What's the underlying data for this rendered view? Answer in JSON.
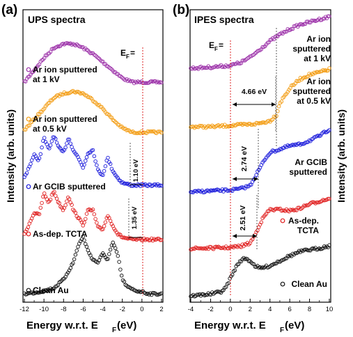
{
  "chart_data": [
    {
      "type": "scatter",
      "panel_label": "(a)",
      "title": "UPS spectra",
      "xlabel_main": "Energy w.r.t. E",
      "xlabel_sub": "F",
      "xlabel_unit": " (eV)",
      "ylabel": "Intensity (arb. units)",
      "xlim": [
        -12,
        2
      ],
      "xticks": [
        -12,
        -10,
        -8,
        -6,
        -4,
        -2,
        0,
        2
      ],
      "ef_label": "E",
      "ef_sub": "F",
      "ef_suffix": " =",
      "series": [
        {
          "name": "Ar ion sputtered at 1 kV",
          "label_lines": [
            "Ar ion sputtered",
            "at 1 kV"
          ],
          "color": "#9b2fa8",
          "x": [
            -12,
            -11,
            -10,
            -9,
            -8,
            -7,
            -6,
            -5,
            -4,
            -3,
            -2,
            -1,
            0,
            2
          ],
          "y": [
            0.0,
            0.3,
            0.6,
            0.85,
            0.95,
            0.95,
            0.85,
            0.7,
            0.5,
            0.3,
            0.1,
            0.0,
            0.0,
            0.0
          ]
        },
        {
          "name": "Ar ion sputtered at 0.5 kV",
          "label_lines": [
            "Ar ion sputtered",
            "at 0.5 kV"
          ],
          "color": "#f39c12",
          "x": [
            -12,
            -11,
            -10,
            -9,
            -8,
            -7,
            -6,
            -5,
            -4,
            -3,
            -2,
            -1,
            0,
            2
          ],
          "y": [
            0.05,
            0.3,
            0.55,
            0.8,
            0.9,
            0.95,
            0.9,
            0.75,
            0.55,
            0.3,
            0.1,
            0.0,
            0.0,
            0.0
          ]
        },
        {
          "name": "Ar GCIB sputtered",
          "label_lines": [
            "Ar GCIB sputtered"
          ],
          "color": "#1a1adb",
          "x": [
            -12,
            -11,
            -10.5,
            -10,
            -9.5,
            -9,
            -8.5,
            -8,
            -7.5,
            -7,
            -6.5,
            -6,
            -5.5,
            -5,
            -4.5,
            -4,
            -3.5,
            -3,
            -2.5,
            -2,
            -1.5,
            -1,
            0,
            2
          ],
          "y": [
            0.15,
            0.6,
            0.5,
            0.95,
            0.7,
            1.0,
            0.75,
            0.65,
            0.95,
            0.7,
            0.55,
            0.35,
            0.65,
            0.7,
            0.3,
            0.2,
            0.55,
            0.3,
            0.15,
            0.05,
            0.02,
            0.0,
            0.0,
            0.0
          ]
        },
        {
          "name": "As-dep. TCTA",
          "label_lines": [
            "As-dep. TCTA"
          ],
          "color": "#e01f1f",
          "x": [
            -12,
            -11,
            -10.5,
            -10,
            -9.5,
            -9,
            -8.5,
            -8,
            -7.5,
            -7,
            -6.5,
            -6,
            -5.5,
            -5,
            -4.5,
            -4,
            -3.5,
            -3,
            -2.5,
            -2,
            -1.5,
            -1,
            0,
            2
          ],
          "y": [
            0.1,
            0.55,
            0.5,
            0.95,
            0.75,
            1.0,
            0.75,
            0.6,
            0.9,
            0.6,
            0.45,
            0.3,
            0.6,
            0.6,
            0.25,
            0.2,
            0.5,
            0.3,
            0.12,
            0.05,
            0.02,
            0.0,
            0.0,
            0.0
          ]
        },
        {
          "name": "Clean Au",
          "label_lines": [
            "Clean Au"
          ],
          "color": "#111111",
          "x": [
            -12,
            -11,
            -10,
            -9,
            -8,
            -7,
            -6.5,
            -6,
            -5.5,
            -5,
            -4.5,
            -4,
            -3.5,
            -3,
            -2.5,
            -2,
            -1.5,
            -1,
            -0.5,
            0,
            0.5,
            1,
            2
          ],
          "y": [
            0.0,
            0.02,
            0.05,
            0.1,
            0.25,
            0.55,
            0.85,
            1.0,
            0.75,
            0.6,
            0.55,
            0.7,
            0.6,
            0.9,
            0.7,
            0.25,
            0.12,
            0.08,
            0.05,
            0.04,
            0.01,
            0.0,
            0.0
          ]
        }
      ],
      "annotations": [
        {
          "text": "1.10 eV"
        },
        {
          "text": "1.35 eV"
        }
      ]
    },
    {
      "type": "scatter",
      "panel_label": "(b)",
      "title": "IPES spectra",
      "xlabel_main": "Energy w.r.t. E",
      "xlabel_sub": "F",
      "xlabel_unit": " (eV)",
      "ylabel": "Intensity (arb. units)",
      "xlim": [
        -4,
        10
      ],
      "xticks": [
        -4,
        -2,
        0,
        2,
        4,
        6,
        8,
        10
      ],
      "ef_label": "E",
      "ef_sub": "F",
      "ef_suffix": " =",
      "series": [
        {
          "name": "Ar ion sputtered at 1 kV",
          "label_lines": [
            "Ar ion",
            "sputtered",
            "at 1 kV"
          ],
          "color": "#9b2fa8",
          "x": [
            -4,
            -2,
            0,
            1,
            2,
            3,
            4,
            5,
            6,
            7,
            8,
            9,
            10
          ],
          "y": [
            0.0,
            0.02,
            0.05,
            0.1,
            0.2,
            0.35,
            0.5,
            0.62,
            0.72,
            0.8,
            0.85,
            0.9,
            0.95
          ]
        },
        {
          "name": "Ar ion sputtered at 0.5 kV",
          "label_lines": [
            "Ar ion",
            "sputtered",
            "at 0.5 kV"
          ],
          "color": "#f39c12",
          "x": [
            -4,
            -2,
            0,
            2,
            3,
            4,
            4.66,
            5,
            6,
            7,
            8,
            9,
            10
          ],
          "y": [
            0.0,
            0.0,
            0.02,
            0.04,
            0.06,
            0.1,
            0.2,
            0.4,
            0.65,
            0.8,
            0.88,
            0.92,
            0.97
          ]
        },
        {
          "name": "Ar GCIB sputtered",
          "label_lines": [
            "Ar GCIB",
            "sputtered"
          ],
          "color": "#1a1adb",
          "x": [
            -4,
            -2,
            0,
            1,
            2,
            2.74,
            3.5,
            4,
            5,
            6,
            7,
            8,
            9,
            10
          ],
          "y": [
            0.0,
            0.02,
            0.03,
            0.05,
            0.1,
            0.3,
            0.5,
            0.6,
            0.65,
            0.7,
            0.72,
            0.78,
            0.85,
            0.95
          ]
        },
        {
          "name": "As-dep. TCTA",
          "label_lines": [
            "As-dep.",
            "TCTA"
          ],
          "color": "#e01f1f",
          "x": [
            -4,
            -2,
            0,
            1,
            2,
            2.51,
            3,
            3.5,
            4,
            5,
            6,
            7,
            8,
            9,
            10
          ],
          "y": [
            0.0,
            0.01,
            0.02,
            0.04,
            0.1,
            0.25,
            0.45,
            0.6,
            0.7,
            0.7,
            0.68,
            0.72,
            0.8,
            0.85,
            0.9
          ]
        },
        {
          "name": "Clean Au",
          "label_lines": [
            "Clean Au"
          ],
          "color": "#111111",
          "x": [
            -4,
            -3,
            -2,
            -1,
            -0.5,
            0,
            0.5,
            1,
            1.5,
            2,
            2.5,
            3,
            4,
            5,
            6,
            7,
            8,
            9,
            10
          ],
          "y": [
            0.0,
            0.02,
            0.04,
            0.08,
            0.15,
            0.35,
            0.55,
            0.7,
            0.75,
            0.7,
            0.6,
            0.55,
            0.6,
            0.7,
            0.8,
            0.88,
            0.92,
            0.95,
            1.0
          ]
        }
      ],
      "annotations": [
        {
          "text": "4.66 eV"
        },
        {
          "text": "2.74 eV"
        },
        {
          "text": "2.51 eV"
        }
      ]
    }
  ]
}
